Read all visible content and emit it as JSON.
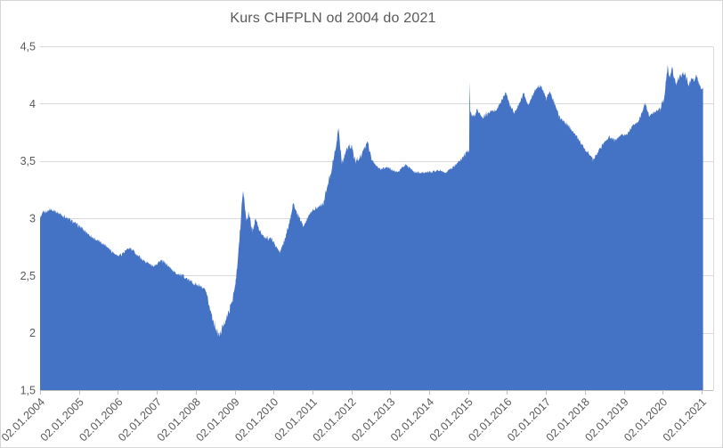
{
  "chart_data": {
    "type": "area",
    "title": "Kurs CHFPLN od 2004 do 2021",
    "series_name": "CHFPLN",
    "xlabel": "",
    "ylabel": "",
    "ylim": [
      1.5,
      4.5
    ],
    "grid": true,
    "legend": false,
    "decimal_separator": ",",
    "y_ticks": [
      {
        "label": "1,5",
        "value": 1.5
      },
      {
        "label": "2",
        "value": 2.0
      },
      {
        "label": "2,5",
        "value": 2.5
      },
      {
        "label": "3",
        "value": 3.0
      },
      {
        "label": "3,5",
        "value": 3.5
      },
      {
        "label": "4",
        "value": 4.0
      },
      {
        "label": "4,5",
        "value": 4.5
      }
    ],
    "x_ticks": [
      {
        "label": "02.01.2004",
        "year": 2004
      },
      {
        "label": "02.01.2005",
        "year": 2005
      },
      {
        "label": "02.01.2006",
        "year": 2006
      },
      {
        "label": "02.01.2007",
        "year": 2007
      },
      {
        "label": "02.01.2008",
        "year": 2008
      },
      {
        "label": "02.01.2009",
        "year": 2009
      },
      {
        "label": "02.01.2010",
        "year": 2010
      },
      {
        "label": "02.01.2011",
        "year": 2011
      },
      {
        "label": "02.01.2012",
        "year": 2012
      },
      {
        "label": "02.01.2013",
        "year": 2013
      },
      {
        "label": "02.01.2014",
        "year": 2014
      },
      {
        "label": "02.01.2015",
        "year": 2015
      },
      {
        "label": "02.01.2016",
        "year": 2016
      },
      {
        "label": "02.01.2017",
        "year": 2017
      },
      {
        "label": "02.01.2018",
        "year": 2018
      },
      {
        "label": "02.01.2019",
        "year": 2019
      },
      {
        "label": "02.01.2020",
        "year": 2020
      },
      {
        "label": "02.01.2021",
        "year": 2021
      }
    ],
    "points": [
      [
        2004.0,
        3.0
      ],
      [
        2004.08,
        3.05
      ],
      [
        2004.3,
        3.08
      ],
      [
        2004.55,
        3.03
      ],
      [
        2004.8,
        2.98
      ],
      [
        2005.05,
        2.92
      ],
      [
        2005.35,
        2.83
      ],
      [
        2005.7,
        2.76
      ],
      [
        2006.0,
        2.67
      ],
      [
        2006.15,
        2.7
      ],
      [
        2006.3,
        2.74
      ],
      [
        2006.6,
        2.65
      ],
      [
        2006.9,
        2.58
      ],
      [
        2007.1,
        2.63
      ],
      [
        2007.25,
        2.6
      ],
      [
        2007.45,
        2.53
      ],
      [
        2007.7,
        2.49
      ],
      [
        2007.95,
        2.43
      ],
      [
        2008.1,
        2.41
      ],
      [
        2008.25,
        2.37
      ],
      [
        2008.4,
        2.17
      ],
      [
        2008.52,
        2.03
      ],
      [
        2008.6,
        1.97
      ],
      [
        2008.7,
        2.06
      ],
      [
        2008.85,
        2.18
      ],
      [
        2008.95,
        2.3
      ],
      [
        2009.02,
        2.42
      ],
      [
        2009.08,
        2.62
      ],
      [
        2009.13,
        2.85
      ],
      [
        2009.18,
        3.1
      ],
      [
        2009.22,
        3.24
      ],
      [
        2009.3,
        2.98
      ],
      [
        2009.36,
        3.04
      ],
      [
        2009.45,
        2.9
      ],
      [
        2009.55,
        2.99
      ],
      [
        2009.65,
        2.88
      ],
      [
        2009.8,
        2.83
      ],
      [
        2009.95,
        2.82
      ],
      [
        2010.16,
        2.7
      ],
      [
        2010.3,
        2.82
      ],
      [
        2010.42,
        2.98
      ],
      [
        2010.5,
        3.13
      ],
      [
        2010.62,
        3.03
      ],
      [
        2010.77,
        2.94
      ],
      [
        2010.9,
        3.02
      ],
      [
        2011.0,
        3.07
      ],
      [
        2011.15,
        3.1
      ],
      [
        2011.28,
        3.13
      ],
      [
        2011.46,
        3.38
      ],
      [
        2011.57,
        3.57
      ],
      [
        2011.67,
        3.78
      ],
      [
        2011.76,
        3.48
      ],
      [
        2011.87,
        3.6
      ],
      [
        2011.99,
        3.64
      ],
      [
        2012.1,
        3.5
      ],
      [
        2012.26,
        3.55
      ],
      [
        2012.42,
        3.67
      ],
      [
        2012.53,
        3.5
      ],
      [
        2012.72,
        3.43
      ],
      [
        2012.95,
        3.44
      ],
      [
        2013.17,
        3.4
      ],
      [
        2013.4,
        3.47
      ],
      [
        2013.63,
        3.4
      ],
      [
        2013.98,
        3.4
      ],
      [
        2014.27,
        3.42
      ],
      [
        2014.43,
        3.4
      ],
      [
        2014.66,
        3.46
      ],
      [
        2014.82,
        3.51
      ],
      [
        2014.96,
        3.58
      ],
      [
        2015.03,
        3.57
      ],
      [
        2015.042,
        4.31
      ],
      [
        2015.055,
        3.95
      ],
      [
        2015.12,
        3.89
      ],
      [
        2015.25,
        3.95
      ],
      [
        2015.35,
        3.88
      ],
      [
        2015.5,
        3.91
      ],
      [
        2015.74,
        3.95
      ],
      [
        2015.97,
        4.1
      ],
      [
        2016.08,
        3.98
      ],
      [
        2016.2,
        3.92
      ],
      [
        2016.43,
        4.09
      ],
      [
        2016.54,
        3.99
      ],
      [
        2016.77,
        4.14
      ],
      [
        2016.88,
        4.16
      ],
      [
        2017.0,
        4.04
      ],
      [
        2017.11,
        4.1
      ],
      [
        2017.34,
        3.89
      ],
      [
        2017.57,
        3.81
      ],
      [
        2017.8,
        3.71
      ],
      [
        2017.98,
        3.61
      ],
      [
        2018.14,
        3.55
      ],
      [
        2018.21,
        3.5
      ],
      [
        2018.32,
        3.57
      ],
      [
        2018.48,
        3.65
      ],
      [
        2018.62,
        3.71
      ],
      [
        2018.78,
        3.68
      ],
      [
        2018.94,
        3.73
      ],
      [
        2019.08,
        3.73
      ],
      [
        2019.24,
        3.81
      ],
      [
        2019.4,
        3.86
      ],
      [
        2019.55,
        4.0
      ],
      [
        2019.66,
        3.89
      ],
      [
        2019.77,
        3.92
      ],
      [
        2019.93,
        3.95
      ],
      [
        2020.04,
        4.04
      ],
      [
        2020.13,
        4.33
      ],
      [
        2020.18,
        4.22
      ],
      [
        2020.24,
        4.33
      ],
      [
        2020.34,
        4.16
      ],
      [
        2020.45,
        4.24
      ],
      [
        2020.56,
        4.26
      ],
      [
        2020.68,
        4.17
      ],
      [
        2020.75,
        4.22
      ],
      [
        2020.82,
        4.2
      ],
      [
        2020.86,
        4.24
      ],
      [
        2020.94,
        4.18
      ],
      [
        2021.0,
        4.12
      ],
      [
        2021.04,
        4.14
      ]
    ],
    "volatility": [
      [
        2004.0,
        2008.3,
        0.015
      ],
      [
        2008.3,
        2009.6,
        0.03
      ],
      [
        2009.6,
        2011.3,
        0.018
      ],
      [
        2011.3,
        2012.5,
        0.025
      ],
      [
        2012.5,
        2014.9,
        0.012
      ],
      [
        2014.9,
        2015.6,
        0.022
      ],
      [
        2015.6,
        2019.9,
        0.015
      ],
      [
        2019.9,
        2020.7,
        0.022
      ],
      [
        2020.7,
        2021.1,
        0.015
      ]
    ],
    "colors": {
      "area_fill": "#4472C4",
      "gridline": "#d9d9d9",
      "axis_line": "#bfbfbf",
      "label_text": "#595959",
      "background": "#ffffff"
    }
  }
}
